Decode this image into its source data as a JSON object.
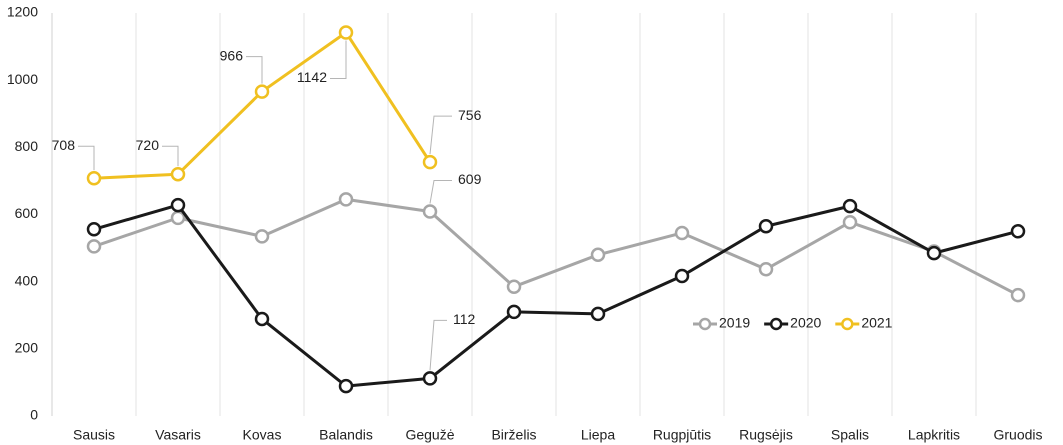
{
  "chart_data": {
    "type": "line",
    "categories": [
      "Sausis",
      "Vasaris",
      "Kovas",
      "Balandis",
      "Gegužė",
      "Birželis",
      "Liepa",
      "Rugpjūtis",
      "Rugsėjis",
      "Spalis",
      "Lapkritis",
      "Gruodis"
    ],
    "series": [
      {
        "name": "2019",
        "color": "#a6a6a6",
        "values": [
          505,
          590,
          535,
          645,
          609,
          385,
          480,
          545,
          437,
          577,
          490,
          360
        ],
        "data_labels": [
          4
        ]
      },
      {
        "name": "2020",
        "color": "#1a1a1a",
        "values": [
          556,
          628,
          289,
          89,
          112,
          310,
          304,
          417,
          565,
          625,
          485,
          550
        ],
        "data_labels": [
          4
        ]
      },
      {
        "name": "2021",
        "color": "#f0c020",
        "values": [
          708,
          720,
          966,
          1142,
          756,
          null,
          null,
          null,
          null,
          null,
          null,
          null
        ],
        "data_labels": [
          0,
          1,
          2,
          3,
          4
        ]
      }
    ],
    "ylim": [
      0,
      1200
    ],
    "yticks": [
      0,
      200,
      400,
      600,
      800,
      1000,
      1200
    ],
    "grid": "vertical",
    "legend": "right"
  }
}
